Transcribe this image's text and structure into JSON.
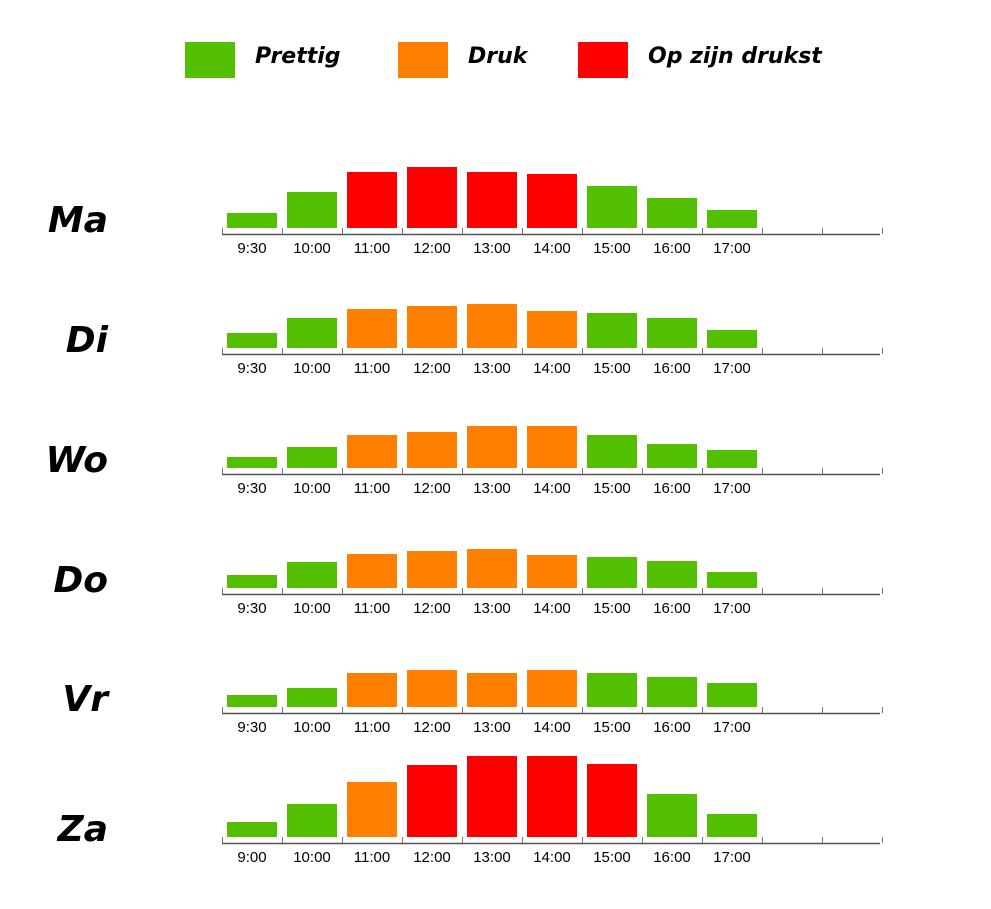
{
  "legend": [
    {
      "label": "Prettig",
      "color": "#52c000"
    },
    {
      "label": "Druk",
      "color": "#ff8000"
    },
    {
      "label": "Op zijn drukst",
      "color": "#ff0000"
    }
  ],
  "level_colors": {
    "prettig": "#52c000",
    "druk": "#ff8000",
    "drukst": "#ff0000"
  },
  "chart_data": [
    {
      "type": "bar",
      "title": "Ma",
      "categories": [
        "9:30",
        "10:00",
        "11:00",
        "12:00",
        "13:00",
        "14:00",
        "15:00",
        "16:00",
        "17:00"
      ],
      "values": [
        15,
        36,
        56,
        61,
        56,
        54,
        42,
        30,
        18
      ],
      "levels": [
        "prettig",
        "prettig",
        "drukst",
        "drukst",
        "drukst",
        "drukst",
        "prettig",
        "prettig",
        "prettig"
      ]
    },
    {
      "type": "bar",
      "title": "Di",
      "categories": [
        "9:30",
        "10:00",
        "11:00",
        "12:00",
        "13:00",
        "14:00",
        "15:00",
        "16:00",
        "17:00"
      ],
      "values": [
        15,
        30,
        39,
        42,
        44,
        37,
        35,
        30,
        18
      ],
      "levels": [
        "prettig",
        "prettig",
        "druk",
        "druk",
        "druk",
        "druk",
        "prettig",
        "prettig",
        "prettig"
      ]
    },
    {
      "type": "bar",
      "title": "Wo",
      "categories": [
        "9:30",
        "10:00",
        "11:00",
        "12:00",
        "13:00",
        "14:00",
        "15:00",
        "16:00",
        "17:00"
      ],
      "values": [
        11,
        21,
        33,
        36,
        42,
        42,
        33,
        24,
        18
      ],
      "levels": [
        "prettig",
        "prettig",
        "druk",
        "druk",
        "druk",
        "druk",
        "prettig",
        "prettig",
        "prettig"
      ]
    },
    {
      "type": "bar",
      "title": "Do",
      "categories": [
        "9:30",
        "10:00",
        "11:00",
        "12:00",
        "13:00",
        "14:00",
        "15:00",
        "16:00",
        "17:00"
      ],
      "values": [
        13,
        26,
        34,
        37,
        39,
        33,
        31,
        27,
        16
      ],
      "levels": [
        "prettig",
        "prettig",
        "druk",
        "druk",
        "druk",
        "druk",
        "prettig",
        "prettig",
        "prettig"
      ]
    },
    {
      "type": "bar",
      "title": "Vr",
      "categories": [
        "9:30",
        "10:00",
        "11:00",
        "12:00",
        "13:00",
        "14:00",
        "15:00",
        "16:00",
        "17:00"
      ],
      "values": [
        12,
        19,
        34,
        37,
        34,
        37,
        34,
        30,
        24
      ],
      "levels": [
        "prettig",
        "prettig",
        "druk",
        "druk",
        "druk",
        "druk",
        "prettig",
        "prettig",
        "prettig"
      ]
    },
    {
      "type": "bar",
      "title": "Za",
      "categories": [
        "9:00",
        "10:00",
        "11:00",
        "12:00",
        "13:00",
        "14:00",
        "15:00",
        "16:00",
        "17:00"
      ],
      "values": [
        15,
        33,
        55,
        72,
        81,
        81,
        73,
        43,
        23
      ],
      "levels": [
        "prettig",
        "prettig",
        "druk",
        "drukst",
        "drukst",
        "drukst",
        "drukst",
        "prettig",
        "prettig"
      ]
    }
  ]
}
